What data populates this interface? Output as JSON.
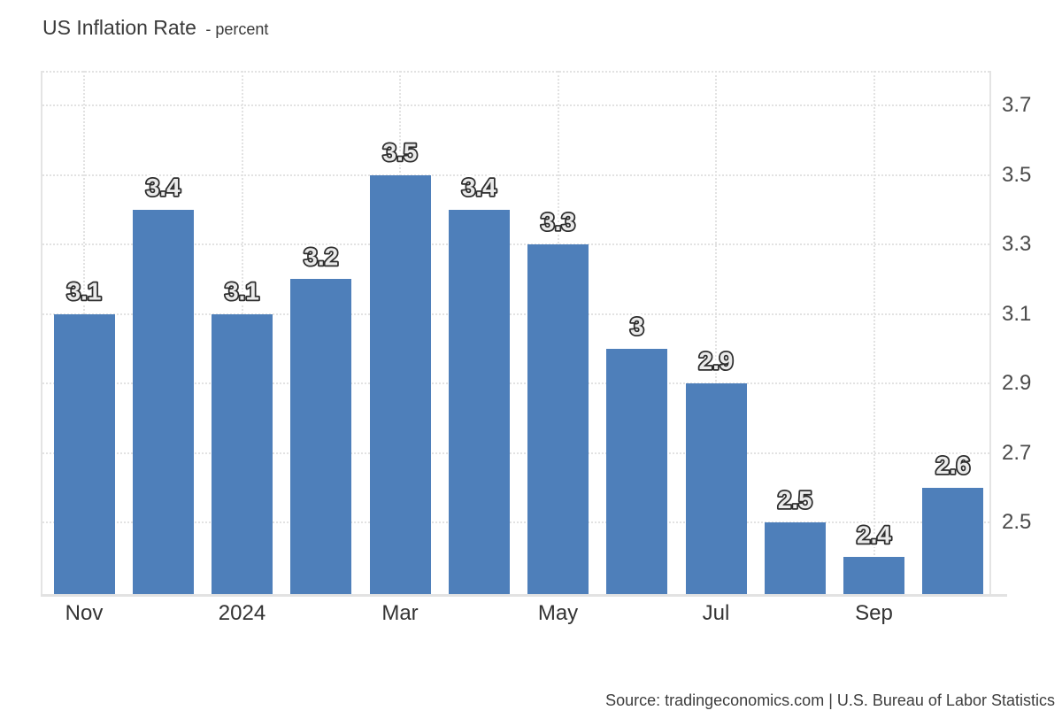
{
  "header": {
    "title": "US Inflation Rate",
    "subtitle": "- percent"
  },
  "footer": {
    "source": "Source: tradingeconomics.com | U.S. Bureau of Labor Statistics"
  },
  "chart_data": {
    "type": "bar",
    "title": "US Inflation Rate",
    "ylabel": "percent",
    "values": [
      3.1,
      3.4,
      3.1,
      3.2,
      3.5,
      3.4,
      3.3,
      3.0,
      2.9,
      2.5,
      2.4,
      2.6
    ],
    "bar_value_labels": [
      "3.1",
      "3.4",
      "3.1",
      "3.2",
      "3.5",
      "3.4",
      "3.3",
      "3",
      "2.9",
      "2.5",
      "2.4",
      "2.6"
    ],
    "x_ticks": [
      {
        "bar_index": 0,
        "label": "Nov"
      },
      {
        "bar_index": 2,
        "label": "2024"
      },
      {
        "bar_index": 4,
        "label": "Mar"
      },
      {
        "bar_index": 6,
        "label": "May"
      },
      {
        "bar_index": 8,
        "label": "Jul"
      },
      {
        "bar_index": 10,
        "label": "Sep"
      }
    ],
    "y_ticks": [
      {
        "value": 3.7,
        "label": "3.7"
      },
      {
        "value": 3.5,
        "label": "3.5"
      },
      {
        "value": 3.3,
        "label": "3.3"
      },
      {
        "value": 3.1,
        "label": "3.1"
      },
      {
        "value": 2.9,
        "label": "2.9"
      },
      {
        "value": 2.7,
        "label": "2.7"
      },
      {
        "value": 2.5,
        "label": "2.5"
      }
    ],
    "ylim": [
      2.294,
      3.8
    ],
    "grid": true,
    "legend_position": "none",
    "colors": {
      "bar": "#4e7fba",
      "grid": "#e2e2e2",
      "axis_line": "#e2e2e2",
      "value_label_fill": "#ebebeb",
      "value_label_stroke": "#2d2d2d",
      "value_label_halo": "#ffffff"
    }
  }
}
